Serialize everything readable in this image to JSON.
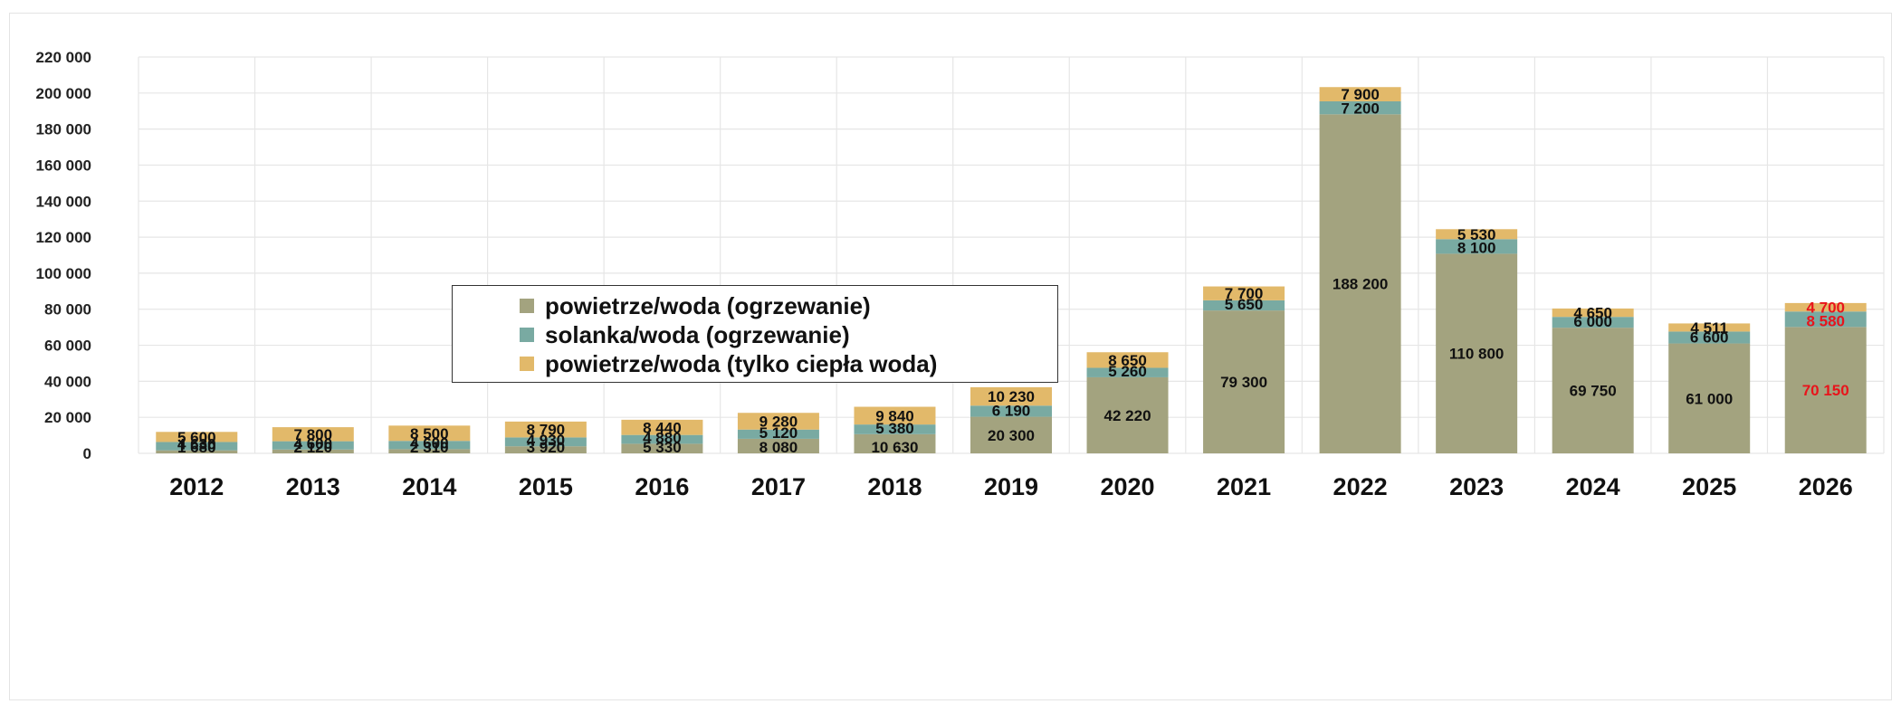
{
  "chart_data": {
    "type": "bar",
    "stacked": true,
    "categories": [
      "2012",
      "2013",
      "2014",
      "2015",
      "2016",
      "2017",
      "2018",
      "2019",
      "2020",
      "2021",
      "2022",
      "2023",
      "2024",
      "2025",
      "2026"
    ],
    "series": [
      {
        "name": "powietrze/woda (ogrzewanie)",
        "color": "#a3a37f",
        "values": [
          1680,
          2120,
          2310,
          3920,
          5330,
          8080,
          10630,
          20300,
          42220,
          79300,
          188200,
          110800,
          69750,
          61000,
          70150
        ],
        "labels": [
          "1 680",
          "2 120",
          "2 310",
          "3 920",
          "5 330",
          "8 080",
          "10 630",
          "20 300",
          "42 220",
          "79 300",
          "188 200",
          "110 800",
          "69 750",
          "61 000",
          "70 150"
        ]
      },
      {
        "name": "solanka/woda (ogrzewanie)",
        "color": "#79aaa2",
        "values": [
          4630,
          4600,
          4600,
          4930,
          4880,
          5120,
          5380,
          6190,
          5260,
          5650,
          7200,
          8100,
          6000,
          6600,
          8580
        ],
        "labels": [
          "4 630",
          "4 600",
          "4 600",
          "4 930",
          "4 880",
          "5 120",
          "5 380",
          "6 190",
          "5 260",
          "5 650",
          "7 200",
          "8 100",
          "6 000",
          "6 600",
          "8 580"
        ]
      },
      {
        "name": "powietrze/woda (tylko ciepła woda)",
        "color": "#e2b96a",
        "values": [
          5600,
          7800,
          8500,
          8790,
          8440,
          9280,
          9840,
          10230,
          8650,
          7700,
          7900,
          5530,
          4650,
          4511,
          4700
        ],
        "labels": [
          "5 600",
          "7 800",
          "8 500",
          "8 790",
          "8 440",
          "9 280",
          "9 840",
          "10 230",
          "8 650",
          "7 700",
          "7 900",
          "5 530",
          "4 650",
          "4 511",
          "4 700"
        ]
      }
    ],
    "highlight_category": "2026",
    "highlight_label_color": "#e8141b",
    "ylim": [
      0,
      220000
    ],
    "yticks": [
      0,
      20000,
      40000,
      60000,
      80000,
      100000,
      120000,
      140000,
      160000,
      180000,
      200000,
      220000
    ],
    "ytick_labels": [
      "0",
      "20 000",
      "40 000",
      "60 000",
      "80 000",
      "100 000",
      "120 000",
      "140 000",
      "160 000",
      "180 000",
      "200 000",
      "220 000"
    ],
    "grid": true,
    "legend_position": "upper-left"
  }
}
